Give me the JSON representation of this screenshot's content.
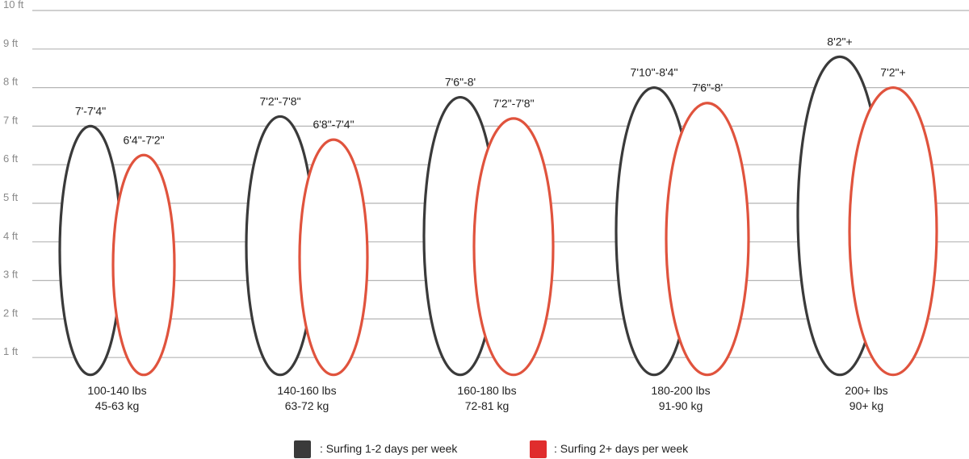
{
  "chart_data": {
    "type": "bar",
    "y_ticks": [
      "1 ft",
      "2 ft",
      "3 ft",
      "4 ft",
      "5 ft",
      "6 ft",
      "7 ft",
      "8 ft",
      "9 ft",
      "10 ft"
    ],
    "ylim": [
      0.55,
      10
    ],
    "grid": true,
    "categories": [
      {
        "lbs": "100-140 lbs",
        "kg": "45-63 kg"
      },
      {
        "lbs": "140-160 lbs",
        "kg": "63-72 kg"
      },
      {
        "lbs": "160-180 lbs",
        "kg": "72-81 kg"
      },
      {
        "lbs": "180-200 lbs",
        "kg": "91-90 kg"
      },
      {
        "lbs": "200+ lbs",
        "kg": "90+ kg"
      }
    ],
    "series": [
      {
        "name": ": Surfing 1-2 days per week",
        "color": "#3a3a3a",
        "values": [
          7.0,
          7.25,
          7.75,
          8.0,
          8.8
        ],
        "labels": [
          "7'-7'4\"",
          "7'2\"-7'8\"",
          "7'6\"-8'",
          "7'10\"-8'4\"",
          "8'2\"+"
        ]
      },
      {
        "name": ": Surfing 2+ days per week",
        "color": "#e0533d",
        "values": [
          6.25,
          6.65,
          7.2,
          7.6,
          8.0
        ],
        "labels": [
          "6'4\"-7'2\"",
          "6'8\"-7'4\"",
          "7'2\"-7'8\"",
          "7'6\"-8'",
          "7'2\"+"
        ]
      }
    ],
    "legend": "bottom-center"
  },
  "legend_swatches": {
    "dark": "#3a3a3a",
    "red": "#e02d2d"
  }
}
